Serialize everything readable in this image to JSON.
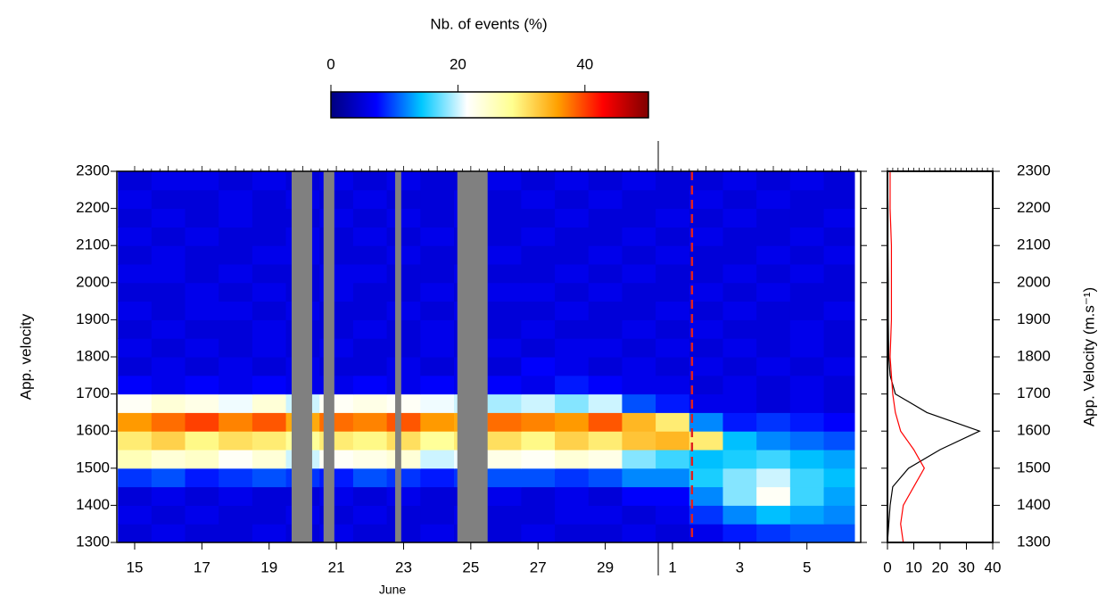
{
  "chart_data": [
    {
      "type": "heatmap",
      "colorbar_title": "Nb. of events (%)",
      "clim": [
        0,
        50
      ],
      "cticks": [
        0,
        20,
        40
      ],
      "colormap": [
        "#00007f",
        "#0000ff",
        "#00c8ff",
        "#ffffff",
        "#ffff90",
        "#ffa000",
        "#ff0000",
        "#7f0000"
      ],
      "ylabel": "App. velocity",
      "xlabel": "June",
      "xlim": [
        14.47,
        36.6
      ],
      "xticks": [
        15,
        17,
        19,
        21,
        23,
        25,
        27,
        29,
        {
          "value": 31,
          "label": "1"
        },
        {
          "value": 33,
          "label": "3"
        },
        {
          "value": 35,
          "label": "5"
        }
      ],
      "ylim": [
        1300,
        2300
      ],
      "yticks": [
        1300,
        1400,
        1500,
        1600,
        1700,
        1800,
        1900,
        2000,
        2100,
        2200,
        2300
      ],
      "x": [
        15,
        16,
        17,
        18,
        19,
        20,
        21,
        22,
        23,
        24,
        25,
        26,
        27,
        28,
        29,
        30,
        31,
        32,
        33,
        34,
        35,
        36
      ],
      "y": [
        1325,
        1375,
        1425,
        1475,
        1525,
        1575,
        1625,
        1675,
        1725,
        1775,
        1825,
        1875,
        1925,
        1975,
        2025,
        2075,
        2125,
        2175,
        2225,
        2275
      ],
      "z": [
        [
          5,
          6,
          5,
          5,
          6,
          5,
          6,
          5,
          5,
          6,
          5,
          5,
          6,
          5,
          5,
          6,
          5,
          6,
          8,
          9,
          10,
          10
        ],
        [
          6,
          5,
          6,
          5,
          5,
          6,
          5,
          6,
          5,
          5,
          6,
          5,
          5,
          6,
          6,
          5,
          6,
          9,
          12,
          14,
          13,
          12
        ],
        [
          5,
          6,
          5,
          6,
          5,
          5,
          6,
          5,
          6,
          5,
          5,
          6,
          5,
          6,
          5,
          7,
          7,
          12,
          18,
          22,
          16,
          13
        ],
        [
          9,
          10,
          8,
          9,
          10,
          9,
          8,
          10,
          9,
          8,
          9,
          10,
          10,
          9,
          10,
          12,
          12,
          15,
          18,
          20,
          16,
          14
        ],
        [
          26,
          24,
          25,
          22,
          24,
          20,
          22,
          23,
          24,
          20,
          21,
          23,
          22,
          24,
          23,
          18,
          16,
          14,
          15,
          16,
          14,
          13
        ],
        [
          30,
          32,
          29,
          31,
          30,
          28,
          30,
          29,
          31,
          28,
          30,
          31,
          29,
          32,
          30,
          33,
          34,
          30,
          14,
          12,
          11,
          10
        ],
        [
          36,
          38,
          40,
          37,
          39,
          35,
          38,
          37,
          39,
          36,
          35,
          38,
          37,
          36,
          39,
          34,
          30,
          12,
          8,
          9,
          8,
          7
        ],
        [
          22,
          24,
          23,
          21,
          24,
          20,
          22,
          23,
          22,
          21,
          20,
          19,
          20,
          18,
          20,
          10,
          8,
          6,
          6,
          5,
          6,
          5
        ],
        [
          7,
          6,
          7,
          6,
          7,
          6,
          6,
          7,
          6,
          7,
          6,
          7,
          6,
          8,
          7,
          6,
          6,
          5,
          6,
          5,
          6,
          5
        ],
        [
          5,
          6,
          5,
          6,
          5,
          6,
          5,
          5,
          6,
          5,
          6,
          5,
          7,
          6,
          5,
          6,
          5,
          6,
          5,
          6,
          5,
          6
        ],
        [
          6,
          5,
          6,
          5,
          6,
          5,
          6,
          5,
          5,
          6,
          5,
          6,
          5,
          6,
          6,
          5,
          6,
          5,
          6,
          5,
          6,
          5
        ],
        [
          5,
          6,
          5,
          5,
          6,
          5,
          5,
          6,
          5,
          6,
          5,
          5,
          6,
          5,
          5,
          6,
          5,
          6,
          5,
          5,
          6,
          5
        ],
        [
          6,
          5,
          6,
          6,
          5,
          6,
          5,
          5,
          6,
          5,
          6,
          5,
          5,
          6,
          5,
          5,
          6,
          5,
          6,
          5,
          5,
          6
        ],
        [
          5,
          5,
          6,
          5,
          6,
          5,
          6,
          5,
          5,
          6,
          5,
          6,
          6,
          5,
          6,
          5,
          5,
          6,
          5,
          6,
          5,
          5
        ],
        [
          6,
          6,
          5,
          6,
          5,
          5,
          6,
          6,
          5,
          5,
          6,
          5,
          5,
          6,
          5,
          6,
          5,
          5,
          6,
          5,
          6,
          5
        ],
        [
          5,
          6,
          5,
          5,
          6,
          6,
          5,
          5,
          6,
          5,
          5,
          6,
          5,
          5,
          6,
          5,
          6,
          5,
          5,
          6,
          5,
          6
        ],
        [
          6,
          5,
          6,
          5,
          5,
          6,
          5,
          6,
          5,
          6,
          5,
          5,
          6,
          5,
          5,
          6,
          5,
          6,
          5,
          5,
          6,
          5
        ],
        [
          5,
          6,
          5,
          6,
          5,
          5,
          6,
          5,
          6,
          5,
          6,
          5,
          5,
          6,
          5,
          5,
          6,
          5,
          6,
          5,
          5,
          6
        ],
        [
          6,
          5,
          5,
          6,
          5,
          6,
          5,
          6,
          5,
          5,
          6,
          5,
          6,
          5,
          6,
          5,
          5,
          6,
          5,
          6,
          5,
          5
        ],
        [
          5,
          6,
          6,
          5,
          6,
          5,
          6,
          5,
          6,
          5,
          5,
          6,
          5,
          6,
          5,
          6,
          5,
          5,
          6,
          5,
          6,
          5
        ]
      ],
      "no_data": [
        [
          19.67,
          20.28
        ],
        [
          20.62,
          20.94
        ],
        [
          22.75,
          22.93
        ],
        [
          24.6,
          25.5
        ]
      ],
      "no_data_color": "#808080",
      "event_x": 31.58,
      "event_color": "#e02020"
    },
    {
      "type": "profile",
      "ylabel": "App. Velocity (m.s⁻¹)",
      "xlim": [
        0,
        40
      ],
      "xticks": [
        0,
        10,
        20,
        30,
        40
      ],
      "ylim": [
        1300,
        2300
      ],
      "yticks": [
        1300,
        1400,
        1500,
        1600,
        1700,
        1800,
        1900,
        2000,
        2100,
        2200,
        2300
      ],
      "y": [
        1300,
        1350,
        1400,
        1450,
        1500,
        1550,
        1600,
        1650,
        1700,
        1750,
        1800,
        1900,
        2000,
        2100,
        2200,
        2300
      ],
      "series": [
        {
          "color": "#000000",
          "values": [
            0,
            0.5,
            1,
            2,
            8,
            20,
            35,
            15,
            3,
            1,
            0.5,
            0.3,
            0.3,
            0.2,
            0.2,
            0
          ]
        },
        {
          "color": "#ff0000",
          "values": [
            6,
            5,
            6,
            10,
            14,
            10,
            5,
            3,
            2,
            1.5,
            1,
            1.5,
            1.5,
            1.5,
            1,
            1
          ]
        }
      ]
    }
  ]
}
